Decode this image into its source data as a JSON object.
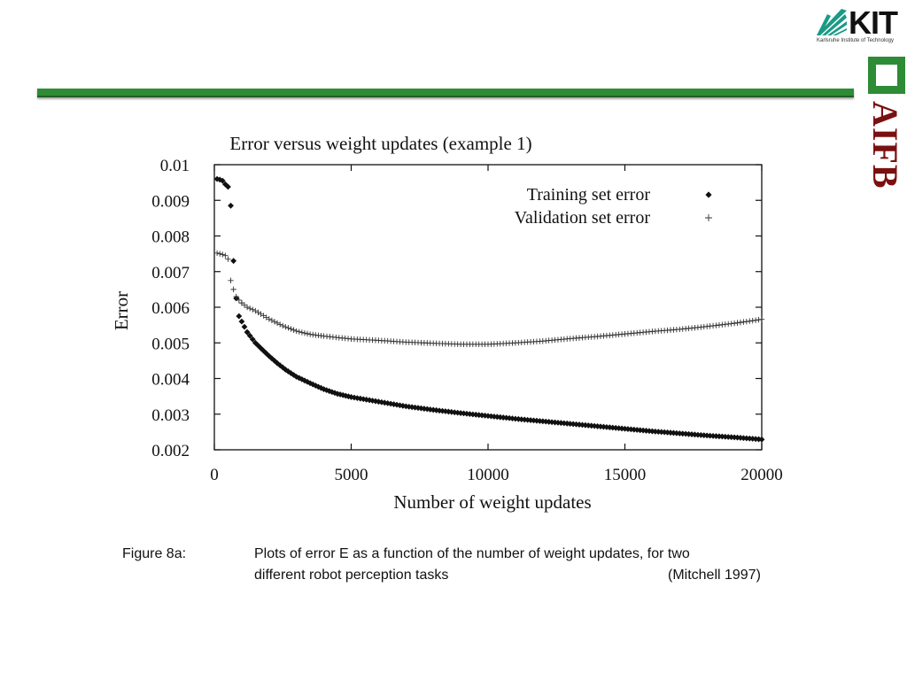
{
  "logos": {
    "kit": {
      "name": "KIT",
      "subtitle": "Karlsruhe Institute of Technology",
      "color": "#1a9a86"
    },
    "aifb": {
      "name": "AIFB",
      "color": "#7a1010",
      "accent": "#2e8b36"
    }
  },
  "caption": {
    "label": "Figure 8a:",
    "line1": "Plots of error E as a function of the number of weight updates, for two",
    "line2": "different robot perception tasks",
    "citation": "(Mitchell 1997)"
  },
  "chart_data": {
    "type": "scatter",
    "title": "Error versus weight updates (example 1)",
    "xlabel": "Number of weight updates",
    "ylabel": "Error",
    "xlim": [
      0,
      20000
    ],
    "ylim": [
      0.002,
      0.01
    ],
    "xticks": [
      "0",
      "5000",
      "10000",
      "15000",
      "20000"
    ],
    "yticks": [
      "0.002",
      "0.003",
      "0.004",
      "0.005",
      "0.006",
      "0.007",
      "0.008",
      "0.009",
      "0.01"
    ],
    "legend_position": "top-right",
    "grid": false,
    "series": [
      {
        "name": "Training set error",
        "marker": "diamond",
        "points": [
          [
            100,
            0.0096
          ],
          [
            200,
            0.00958
          ],
          [
            300,
            0.00955
          ],
          [
            400,
            0.00945
          ],
          [
            500,
            0.00938
          ],
          [
            600,
            0.00885
          ],
          [
            700,
            0.0073
          ],
          [
            800,
            0.00625
          ],
          [
            900,
            0.00575
          ],
          [
            1000,
            0.0056
          ],
          [
            1100,
            0.00545
          ],
          [
            1200,
            0.0053
          ],
          [
            1300,
            0.0052
          ],
          [
            1400,
            0.0051
          ],
          [
            1500,
            0.005
          ],
          [
            1700,
            0.00485
          ],
          [
            2000,
            0.00463
          ],
          [
            2300,
            0.00443
          ],
          [
            2600,
            0.00425
          ],
          [
            3000,
            0.00405
          ],
          [
            3500,
            0.00387
          ],
          [
            4000,
            0.0037
          ],
          [
            4500,
            0.00357
          ],
          [
            5000,
            0.00348
          ],
          [
            6000,
            0.00335
          ],
          [
            7000,
            0.00322
          ],
          [
            8000,
            0.00312
          ],
          [
            9000,
            0.00303
          ],
          [
            10000,
            0.00295
          ],
          [
            11000,
            0.00287
          ],
          [
            12000,
            0.0028
          ],
          [
            13000,
            0.00273
          ],
          [
            14000,
            0.00266
          ],
          [
            15000,
            0.00259
          ],
          [
            16000,
            0.00252
          ],
          [
            17000,
            0.00246
          ],
          [
            18000,
            0.0024
          ],
          [
            19000,
            0.00235
          ],
          [
            20000,
            0.00229
          ]
        ]
      },
      {
        "name": "Validation set error",
        "marker": "plus",
        "points": [
          [
            100,
            0.00752
          ],
          [
            200,
            0.0075
          ],
          [
            300,
            0.00748
          ],
          [
            400,
            0.00745
          ],
          [
            500,
            0.00735
          ],
          [
            600,
            0.00675
          ],
          [
            700,
            0.0065
          ],
          [
            800,
            0.0063
          ],
          [
            900,
            0.0062
          ],
          [
            1000,
            0.00612
          ],
          [
            1200,
            0.006
          ],
          [
            1500,
            0.0059
          ],
          [
            2000,
            0.00567
          ],
          [
            2500,
            0.00548
          ],
          [
            3000,
            0.00533
          ],
          [
            3500,
            0.00524
          ],
          [
            4000,
            0.00519
          ],
          [
            5000,
            0.00511
          ],
          [
            6000,
            0.00507
          ],
          [
            7000,
            0.00502
          ],
          [
            8000,
            0.00499
          ],
          [
            9000,
            0.00496
          ],
          [
            10000,
            0.00496
          ],
          [
            11000,
            0.005
          ],
          [
            12000,
            0.00505
          ],
          [
            13000,
            0.00512
          ],
          [
            14000,
            0.00518
          ],
          [
            15000,
            0.00525
          ],
          [
            16000,
            0.00532
          ],
          [
            17000,
            0.00538
          ],
          [
            18000,
            0.00546
          ],
          [
            19000,
            0.00555
          ],
          [
            20000,
            0.00566
          ]
        ]
      }
    ]
  }
}
